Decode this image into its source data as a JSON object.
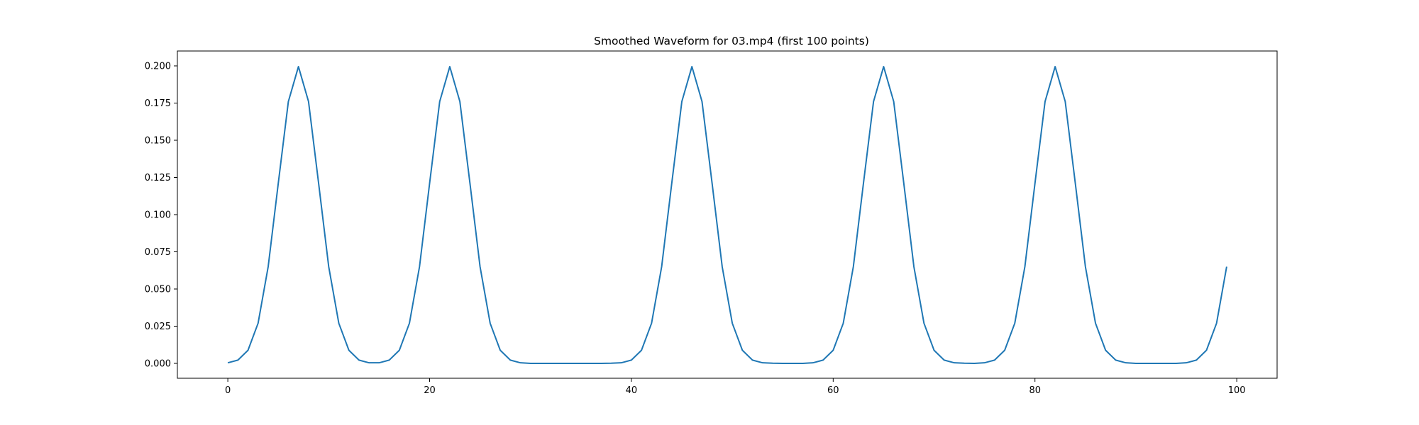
{
  "chart_data": {
    "type": "line",
    "title": "Smoothed Waveform for 03.mp4 (first 100 points)",
    "xlabel": "",
    "ylabel": "",
    "xlim": [
      -5,
      104
    ],
    "ylim": [
      -0.01,
      0.21
    ],
    "xticks": [
      0,
      20,
      40,
      60,
      80,
      100
    ],
    "xtick_labels": [
      "0",
      "20",
      "40",
      "60",
      "80",
      "100"
    ],
    "yticks": [
      0.0,
      0.025,
      0.05,
      0.075,
      0.1,
      0.125,
      0.15,
      0.175,
      0.2
    ],
    "ytick_labels": [
      "0.000",
      "0.025",
      "0.050",
      "0.075",
      "0.100",
      "0.125",
      "0.150",
      "0.175",
      "0.200"
    ],
    "grid": false,
    "legend": "none",
    "line_color": "#1f77b4",
    "series": [
      {
        "x": [
          0,
          1,
          2,
          3,
          4,
          5,
          6,
          7,
          8,
          9,
          10,
          11,
          12,
          13,
          14,
          15,
          16,
          17,
          18,
          19,
          20,
          21,
          22,
          23,
          24,
          25,
          26,
          27,
          28,
          29,
          30,
          31,
          32,
          33,
          34,
          35,
          36,
          37,
          38,
          39,
          40,
          41,
          42,
          43,
          44,
          45,
          46,
          47,
          48,
          49,
          50,
          51,
          52,
          53,
          54,
          55,
          56,
          57,
          58,
          59,
          60,
          61,
          62,
          63,
          64,
          65,
          66,
          67,
          68,
          69,
          70,
          71,
          72,
          73,
          74,
          75,
          76,
          77,
          78,
          79,
          80,
          81,
          82,
          83,
          84,
          85,
          86,
          87,
          88,
          89,
          90,
          91,
          92,
          93,
          94,
          95,
          96,
          97,
          98,
          99
        ],
        "values": [
          0.0004,
          0.0022,
          0.0088,
          0.027,
          0.065,
          0.121,
          0.176,
          0.1995,
          0.176,
          0.121,
          0.065,
          0.027,
          0.0088,
          0.0022,
          0.0004,
          0.0004,
          0.0022,
          0.0088,
          0.027,
          0.065,
          0.121,
          0.176,
          0.1995,
          0.176,
          0.121,
          0.065,
          0.027,
          0.0088,
          0.0022,
          0.0004,
          0.0,
          0.0,
          0.0,
          0.0,
          0.0,
          0.0,
          0.0,
          0.0,
          0.0001,
          0.0004,
          0.0022,
          0.0088,
          0.027,
          0.065,
          0.121,
          0.176,
          0.1995,
          0.176,
          0.121,
          0.065,
          0.027,
          0.0088,
          0.0022,
          0.0004,
          0.0001,
          0.0,
          0.0,
          0.0,
          0.0004,
          0.0022,
          0.0088,
          0.027,
          0.065,
          0.121,
          0.176,
          0.1995,
          0.176,
          0.121,
          0.065,
          0.027,
          0.0088,
          0.0022,
          0.0004,
          0.0001,
          0.0,
          0.0004,
          0.0022,
          0.0088,
          0.027,
          0.065,
          0.121,
          0.176,
          0.1995,
          0.176,
          0.121,
          0.065,
          0.027,
          0.0088,
          0.0022,
          0.0004,
          0.0,
          0.0,
          0.0,
          0.0,
          0.0,
          0.0004,
          0.0022,
          0.0088,
          0.027,
          0.065
        ]
      }
    ]
  }
}
